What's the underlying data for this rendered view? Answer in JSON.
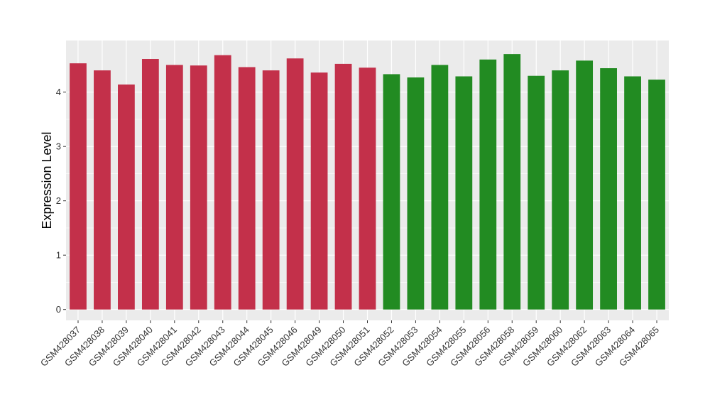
{
  "chart_data": {
    "type": "bar",
    "title": "",
    "xlabel": "",
    "ylabel": "Expression Level",
    "ylim": [
      -0.2,
      4.95
    ],
    "yticks": [
      0,
      1,
      2,
      3,
      4
    ],
    "grid": true,
    "panel_background": "#ebebeb",
    "categories": [
      "GSM428037",
      "GSM428038",
      "GSM428039",
      "GSM428040",
      "GSM428041",
      "GSM428042",
      "GSM428043",
      "GSM428044",
      "GSM428045",
      "GSM428046",
      "GSM428049",
      "GSM428050",
      "GSM428051",
      "GSM428052",
      "GSM428053",
      "GSM428054",
      "GSM428055",
      "GSM428056",
      "GSM428058",
      "GSM428059",
      "GSM428060",
      "GSM428062",
      "GSM428063",
      "GSM428064",
      "GSM428065"
    ],
    "values": [
      4.53,
      4.4,
      4.14,
      4.61,
      4.5,
      4.49,
      4.68,
      4.46,
      4.4,
      4.62,
      4.36,
      4.52,
      4.45,
      4.33,
      4.27,
      4.5,
      4.29,
      4.6,
      4.7,
      4.3,
      4.4,
      4.58,
      4.44,
      4.29,
      4.23
    ],
    "groups": [
      "a",
      "a",
      "a",
      "a",
      "a",
      "a",
      "a",
      "a",
      "a",
      "a",
      "a",
      "a",
      "a",
      "b",
      "b",
      "b",
      "b",
      "b",
      "b",
      "b",
      "b",
      "b",
      "b",
      "b",
      "b"
    ],
    "group_colors": {
      "a": "#c3304a",
      "b": "#228b22"
    }
  }
}
